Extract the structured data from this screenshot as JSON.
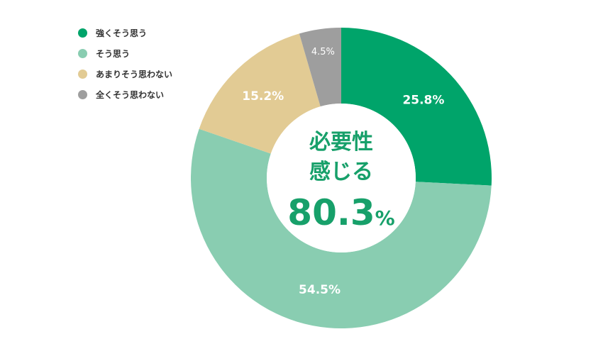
{
  "chart_data": {
    "type": "pie",
    "donut": true,
    "categories": [
      "強くそう思う",
      "そう思う",
      "あまりそう思わない",
      "全くそう思わない"
    ],
    "values": [
      25.8,
      54.5,
      15.2,
      4.5
    ],
    "value_labels": [
      "25.8%",
      "54.5%",
      "15.2%",
      "4.5%"
    ],
    "colors": [
      "#00a46a",
      "#89cdb1",
      "#e2cb94",
      "#9e9e9e"
    ],
    "legend_position": "top-left",
    "center_label": {
      "line1": "必要性",
      "line2": "感じる",
      "value": "80.3",
      "unit": "%"
    }
  },
  "legend": [
    {
      "label": "強くそう思う",
      "color": "#00a46a"
    },
    {
      "label": "そう思う",
      "color": "#89cdb1"
    },
    {
      "label": "あまりそう思わない",
      "color": "#e2cb94"
    },
    {
      "label": "全くそう思わない",
      "color": "#9e9e9e"
    }
  ]
}
